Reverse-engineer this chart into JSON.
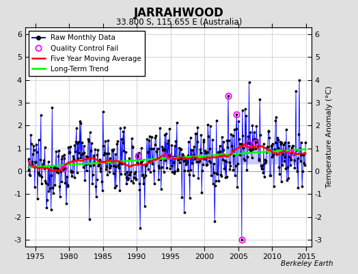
{
  "title": "JARRAHWOOD",
  "subtitle": "33.800 S, 115.655 E (Australia)",
  "ylabel": "Temperature Anomaly (°C)",
  "xlabel_ticks": [
    1975,
    1980,
    1985,
    1990,
    1995,
    2000,
    2005,
    2010,
    2015
  ],
  "ylim": [
    -3.3,
    6.3
  ],
  "xlim": [
    1973.5,
    2015.8
  ],
  "yticks": [
    -3,
    -2,
    -1,
    0,
    1,
    2,
    3,
    4,
    5,
    6
  ],
  "bg_color": "#e0e0e0",
  "plot_bg_color": "#ffffff",
  "watermark": "Berkeley Earth",
  "seed": 12345
}
